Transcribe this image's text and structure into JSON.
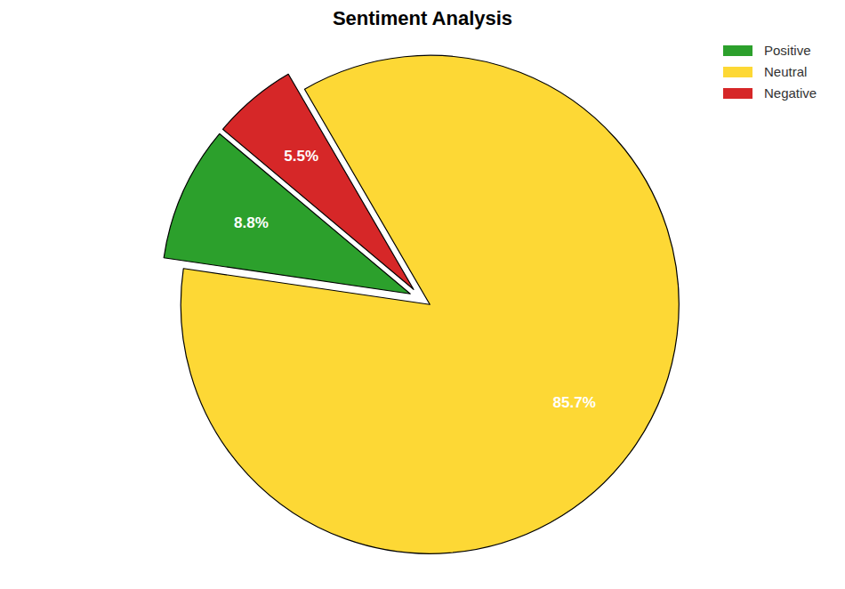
{
  "chart_data": {
    "type": "pie",
    "title": "Sentiment Analysis",
    "categories": [
      "Positive",
      "Neutral",
      "Negative"
    ],
    "values": [
      8.8,
      85.7,
      5.5
    ],
    "value_labels": [
      "8.8%",
      "85.7%",
      "5.5%"
    ],
    "colors": [
      "#2ca02c",
      "#fdd835",
      "#d62728"
    ],
    "legend": "upper right",
    "data_labels": true
  }
}
